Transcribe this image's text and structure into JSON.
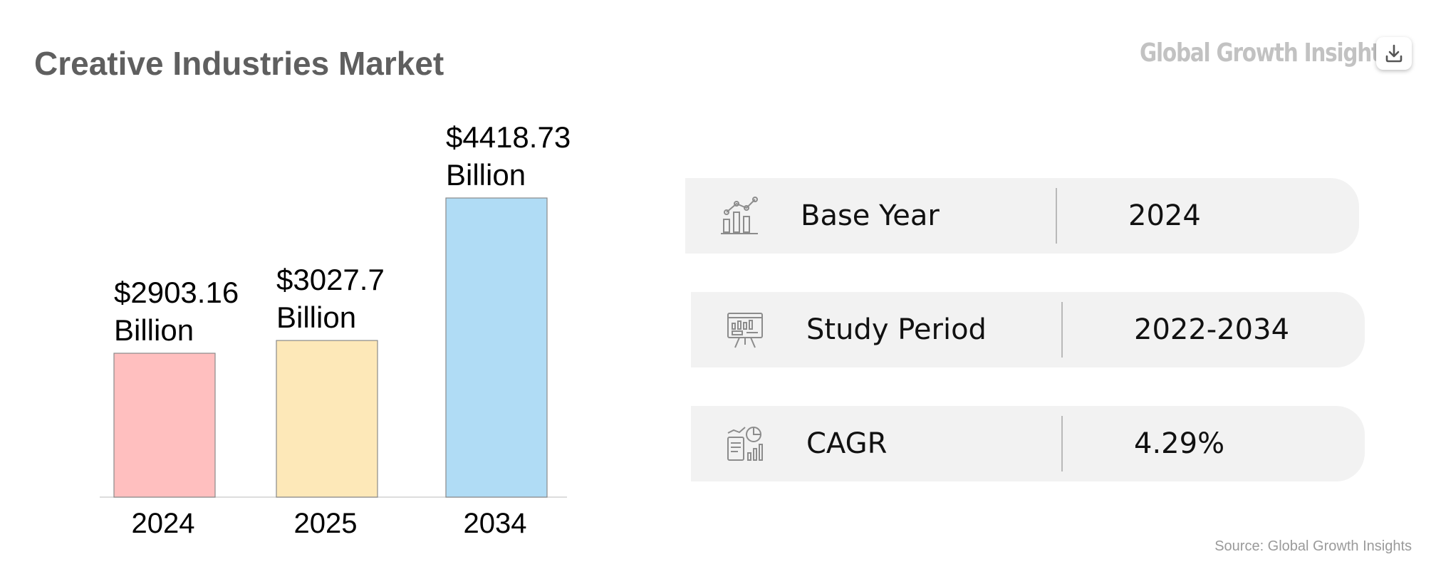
{
  "header": {
    "title": "Creative Industries Market",
    "brand": "Global Growth Insights",
    "download_icon": "download-icon"
  },
  "chart_data": {
    "type": "bar",
    "categories": [
      "2024",
      "2025",
      "2034"
    ],
    "values": [
      2903.16,
      3027.7,
      4418.73
    ],
    "value_labels": [
      [
        "$2903.16",
        "Billion"
      ],
      [
        "$3027.7",
        "Billion"
      ],
      [
        "$4418.73",
        "Billion"
      ]
    ],
    "colors": [
      "#ffbfbf",
      "#fde8b8",
      "#b0dcf5"
    ],
    "edge_color": "#8a8a8a",
    "baseline_color": "#dddddd",
    "title": "",
    "xlabel": "",
    "ylabel": "",
    "grid": false
  },
  "info": [
    {
      "icon": "bar-line-chart-icon",
      "label": "Base Year",
      "value": "2024"
    },
    {
      "icon": "presentation-board-icon",
      "label": "Study Period",
      "value": "2022-2034"
    },
    {
      "icon": "report-pie-chart-icon",
      "label": "CAGR",
      "value": "4.29%"
    }
  ],
  "footer": {
    "source": "Source: Global Growth Insights"
  }
}
